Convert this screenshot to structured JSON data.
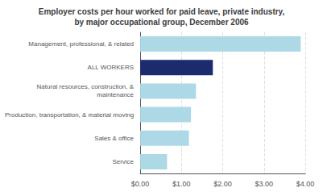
{
  "chart_data": {
    "type": "bar",
    "orientation": "horizontal",
    "title": "Employer costs per hour worked for paid leave, private industry,\nby major occupational group, December 2006",
    "categories": [
      "Service",
      "Sales & office",
      "Production, transportation, & material moving",
      "Natural resources, construction, &\nmaintenance",
      "ALL WORKERS",
      "Management, professional, & related"
    ],
    "values": [
      0.65,
      1.18,
      1.23,
      1.35,
      1.76,
      3.89
    ],
    "colors": [
      "#add8e6",
      "#add8e6",
      "#add8e6",
      "#add8e6",
      "#1c2a6e",
      "#add8e6"
    ],
    "xlim": [
      0,
      4.0
    ],
    "xticks": [
      {
        "value": 0.0,
        "label": "$0.00"
      },
      {
        "value": 1.0,
        "label": "$1.00"
      },
      {
        "value": 2.0,
        "label": "$2.00"
      },
      {
        "value": 3.0,
        "label": "$3.00"
      },
      {
        "value": 4.0,
        "label": "$4.00"
      }
    ],
    "grid": true
  }
}
